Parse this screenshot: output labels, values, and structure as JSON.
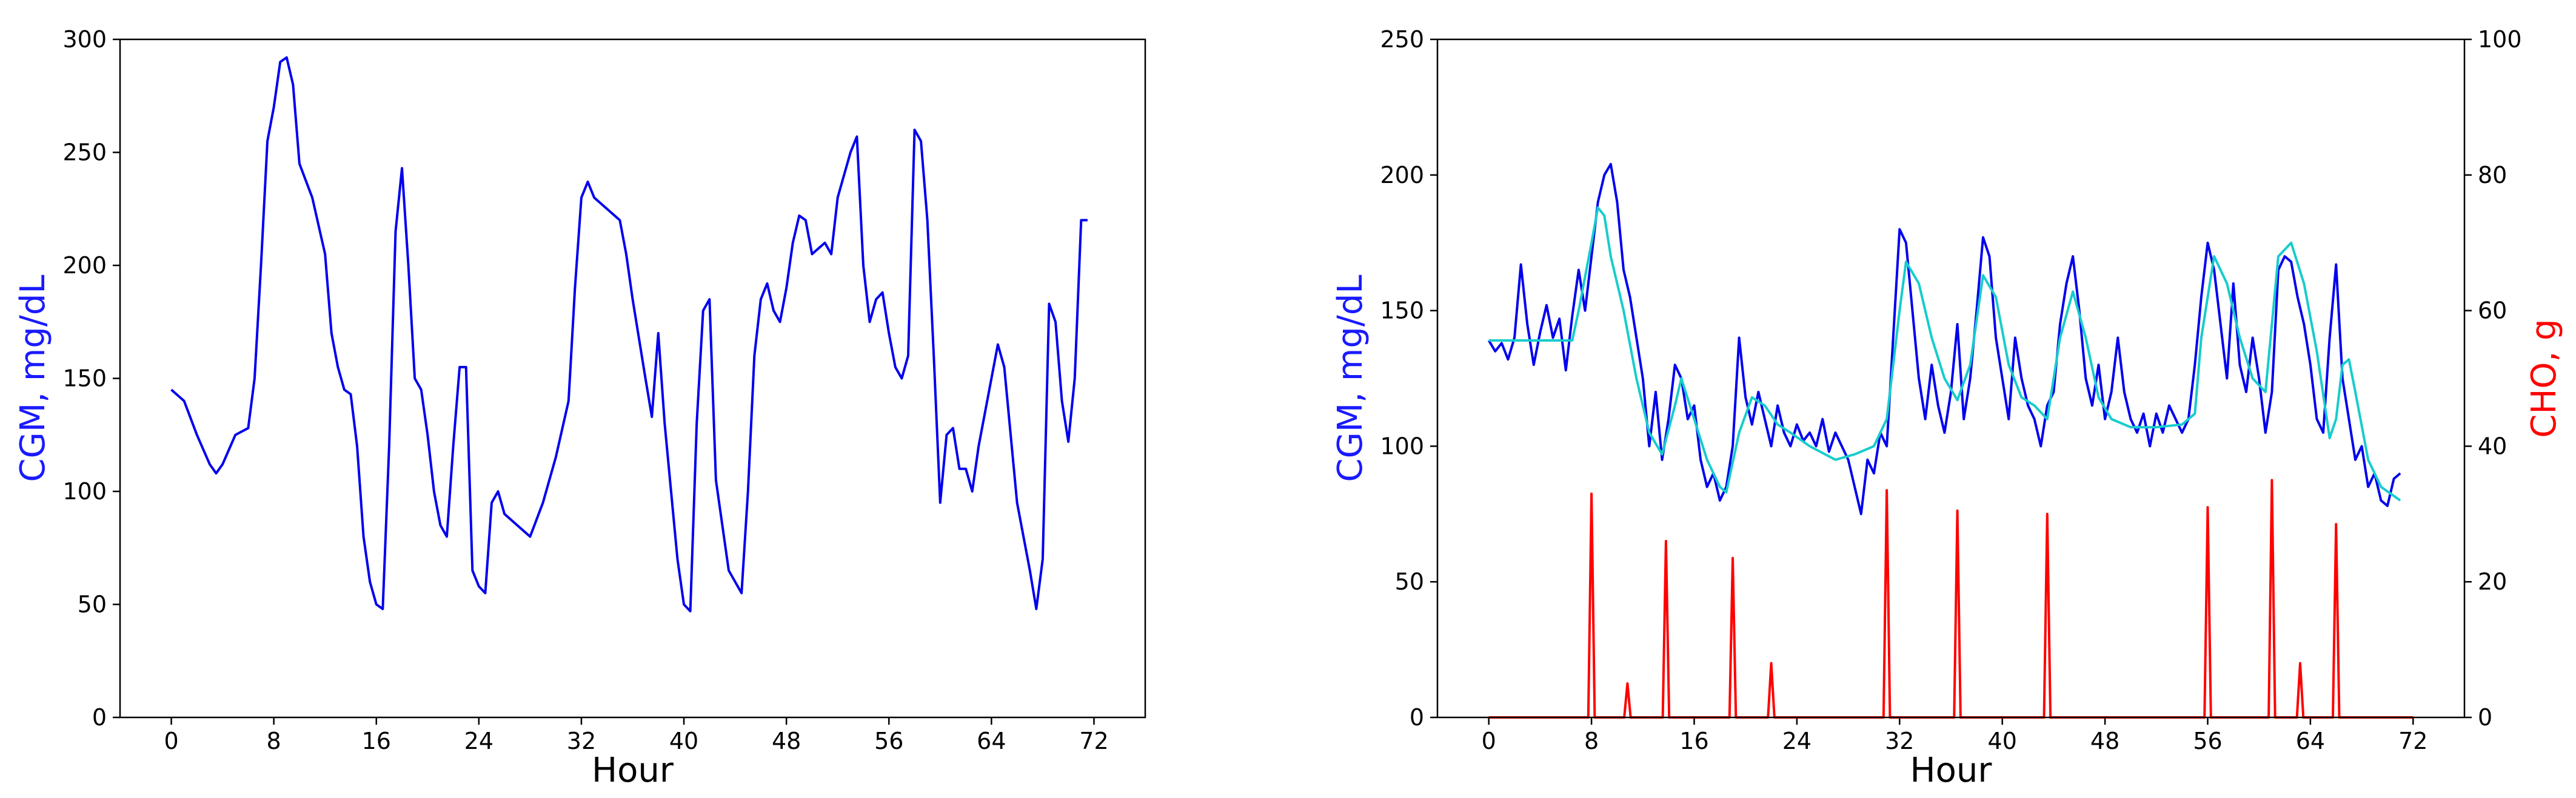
{
  "chart_data": [
    {
      "type": "line",
      "xlabel": "Hour",
      "ylabel": "CGM, mg/dL",
      "ylabel_color": "#1a1aff",
      "xlim": [
        -4,
        76
      ],
      "xticks": [
        0,
        8,
        16,
        24,
        32,
        40,
        48,
        56,
        64,
        72
      ],
      "ylim": [
        0,
        300
      ],
      "yticks": [
        0,
        50,
        100,
        150,
        200,
        250,
        300
      ],
      "series": [
        {
          "color": "#0000ee",
          "x": [
            0,
            1,
            2,
            3,
            3.5,
            4,
            5,
            6,
            6.5,
            7,
            7.5,
            8,
            8.5,
            9,
            9.5,
            10,
            11,
            12,
            12.5,
            13,
            13.5,
            14,
            14.5,
            15,
            15.5,
            16,
            16.5,
            17,
            17.5,
            18,
            18.5,
            19,
            19.5,
            20,
            20.5,
            21,
            21.5,
            22,
            22.5,
            23,
            23.5,
            24,
            24.5,
            25,
            25.5,
            26,
            27,
            28,
            29,
            30,
            31,
            31.5,
            32,
            32.5,
            33,
            34,
            35,
            35.5,
            36,
            37,
            37.5,
            38,
            38.5,
            39,
            39.5,
            40,
            40.5,
            41,
            41.5,
            42,
            42.5,
            43,
            43.5,
            44,
            44.5,
            45,
            45.5,
            46,
            46.5,
            47,
            47.5,
            48,
            48.5,
            49,
            49.5,
            50,
            51,
            51.5,
            52,
            53,
            53.5,
            54,
            54.5,
            55,
            55.5,
            56,
            56.5,
            57,
            57.5,
            58,
            58.5,
            59,
            59.5,
            60,
            60.5,
            61,
            61.5,
            62,
            62.5,
            63,
            64,
            64.5,
            65,
            65.5,
            66,
            66.5,
            67,
            67.5,
            68,
            68.5,
            69,
            69.5,
            70,
            70.5,
            71,
            71.5
          ],
          "values": [
            145,
            140,
            125,
            112,
            108,
            112,
            125,
            128,
            150,
            200,
            255,
            270,
            290,
            292,
            280,
            245,
            230,
            205,
            170,
            155,
            145,
            143,
            120,
            80,
            60,
            50,
            48,
            120,
            215,
            243,
            200,
            150,
            145,
            125,
            100,
            85,
            80,
            120,
            155,
            155,
            65,
            58,
            55,
            95,
            100,
            90,
            85,
            80,
            95,
            115,
            140,
            190,
            230,
            237,
            230,
            225,
            220,
            205,
            185,
            150,
            133,
            170,
            130,
            100,
            70,
            50,
            47,
            130,
            180,
            185,
            105,
            85,
            65,
            60,
            55,
            100,
            160,
            185,
            192,
            180,
            175,
            190,
            210,
            222,
            220,
            205,
            210,
            205,
            230,
            250,
            257,
            200,
            175,
            185,
            188,
            170,
            155,
            150,
            160,
            260,
            255,
            220,
            160,
            95,
            125,
            128,
            110,
            110,
            100,
            120,
            150,
            165,
            155,
            125,
            95,
            80,
            65,
            48,
            70,
            183,
            175,
            140,
            122,
            150,
            220,
            220
          ]
        }
      ]
    },
    {
      "type": "line",
      "xlabel": "Hour",
      "ylabel": "CGM, mg/dL",
      "ylabel_color": "#1a1aff",
      "y2label": "CHO, g",
      "y2label_color": "#ff0000",
      "xlim": [
        -4,
        76
      ],
      "xticks": [
        0,
        8,
        16,
        24,
        32,
        40,
        48,
        56,
        64,
        72
      ],
      "ylim": [
        0,
        250
      ],
      "yticks": [
        0,
        50,
        100,
        150,
        200,
        250
      ],
      "y2lim": [
        0,
        100
      ],
      "y2ticks": [
        0,
        20,
        40,
        60,
        80,
        100
      ],
      "series": [
        {
          "color": "#ff0000",
          "axis": "y2",
          "x": [
            0,
            7.75,
            8,
            8.25,
            10.55,
            10.8,
            11.05,
            13.55,
            13.8,
            14.05,
            18.75,
            19,
            19.25,
            21.75,
            22,
            22.25,
            30.75,
            31,
            31.25,
            36.25,
            36.5,
            36.75,
            43.25,
            43.5,
            43.75,
            55.75,
            56,
            56.25,
            60.75,
            61,
            61.25,
            62.95,
            63.2,
            63.45,
            65.75,
            66,
            66.25,
            72
          ],
          "values": [
            0,
            0,
            33,
            0,
            0,
            5,
            0,
            0,
            26,
            0,
            0,
            23.5,
            0,
            0,
            8,
            0,
            0,
            33.5,
            0,
            0,
            30.5,
            0,
            0,
            30,
            0,
            0,
            31,
            0,
            0,
            35,
            0,
            0,
            8,
            0,
            0,
            28.5,
            0,
            0
          ]
        },
        {
          "color": "#0000ee",
          "x": [
            0,
            0.5,
            1,
            1.5,
            2,
            2.5,
            3,
            3.5,
            4,
            4.5,
            5,
            5.5,
            6,
            6.5,
            7,
            7.5,
            8,
            8.5,
            9,
            9.5,
            10,
            10.5,
            11,
            11.5,
            12,
            12.5,
            13,
            13.5,
            14,
            14.5,
            15,
            15.5,
            16,
            16.5,
            17,
            17.5,
            18,
            18.5,
            19,
            19.5,
            20,
            20.5,
            21,
            21.5,
            22,
            22.5,
            23,
            23.5,
            24,
            24.5,
            25,
            25.5,
            26,
            26.5,
            27,
            27.5,
            28,
            28.5,
            29,
            29.5,
            30,
            30.5,
            31,
            31.5,
            32,
            32.5,
            33,
            33.5,
            34,
            34.5,
            35,
            35.5,
            36,
            36.5,
            37,
            37.5,
            38,
            38.5,
            39,
            39.5,
            40,
            40.5,
            41,
            41.5,
            42,
            42.5,
            43,
            43.5,
            44,
            44.5,
            45,
            45.5,
            46,
            46.5,
            47,
            47.5,
            48,
            48.5,
            49,
            49.5,
            50,
            50.5,
            51,
            51.5,
            52,
            52.5,
            53,
            53.5,
            54,
            54.5,
            55,
            55.5,
            56,
            56.5,
            57,
            57.5,
            58,
            58.5,
            59,
            59.5,
            60,
            60.5,
            61,
            61.5,
            62,
            62.5,
            63,
            63.5,
            64,
            64.5,
            65,
            65.5,
            66,
            66.5,
            67,
            67.5,
            68,
            68.5,
            69,
            69.5,
            70,
            70.5,
            71
          ],
          "values": [
            139,
            135,
            138,
            132,
            140,
            167,
            145,
            130,
            142,
            152,
            140,
            147,
            128,
            148,
            165,
            150,
            170,
            190,
            200,
            204,
            190,
            165,
            155,
            140,
            125,
            100,
            120,
            95,
            110,
            130,
            125,
            110,
            115,
            95,
            85,
            90,
            80,
            85,
            100,
            140,
            118,
            108,
            120,
            110,
            100,
            115,
            105,
            100,
            108,
            102,
            105,
            100,
            110,
            98,
            105,
            100,
            95,
            85,
            75,
            95,
            90,
            105,
            100,
            140,
            180,
            175,
            150,
            125,
            110,
            130,
            115,
            105,
            120,
            145,
            110,
            125,
            150,
            177,
            170,
            140,
            125,
            110,
            140,
            125,
            115,
            110,
            100,
            115,
            120,
            145,
            160,
            170,
            150,
            125,
            115,
            130,
            110,
            120,
            140,
            120,
            110,
            105,
            112,
            100,
            112,
            105,
            115,
            110,
            105,
            110,
            130,
            155,
            175,
            165,
            145,
            125,
            160,
            130,
            120,
            140,
            125,
            105,
            120,
            165,
            170,
            168,
            155,
            145,
            130,
            110,
            105,
            140,
            167,
            125,
            110,
            95,
            100,
            85,
            90,
            80,
            78,
            88,
            90
          ]
        },
        {
          "color": "#17cccc",
          "x": [
            0,
            6.5,
            7,
            8,
            8.5,
            9,
            9.5,
            10.5,
            11.5,
            12.5,
            13.5,
            14.5,
            15,
            16,
            17,
            18,
            18.5,
            19.5,
            20.5,
            21.5,
            22.5,
            23.5,
            25,
            27,
            28.5,
            30,
            31,
            32,
            32.5,
            33.5,
            34.5,
            35.5,
            36.5,
            37.5,
            38.5,
            39.5,
            40.5,
            41.5,
            42.5,
            43.5,
            44.5,
            45.5,
            46.5,
            47.5,
            48.5,
            50,
            52,
            54,
            55,
            55.5,
            56.5,
            57.5,
            58.5,
            59.5,
            60.5,
            61.5,
            62.5,
            63.5,
            64.5,
            65.5,
            66,
            66.5,
            67,
            67.5,
            68.5,
            69.5,
            71
          ],
          "values": [
            139,
            139,
            150,
            175,
            188,
            185,
            170,
            150,
            125,
            105,
            97,
            115,
            125,
            110,
            95,
            85,
            83,
            105,
            118,
            115,
            108,
            105,
            100,
            95,
            97,
            100,
            110,
            150,
            168,
            160,
            140,
            125,
            117,
            130,
            163,
            155,
            130,
            118,
            115,
            110,
            140,
            157,
            140,
            118,
            110,
            107,
            107,
            108,
            112,
            140,
            170,
            160,
            140,
            125,
            120,
            170,
            175,
            160,
            135,
            103,
            110,
            130,
            132,
            120,
            95,
            85,
            80
          ]
        }
      ]
    }
  ]
}
